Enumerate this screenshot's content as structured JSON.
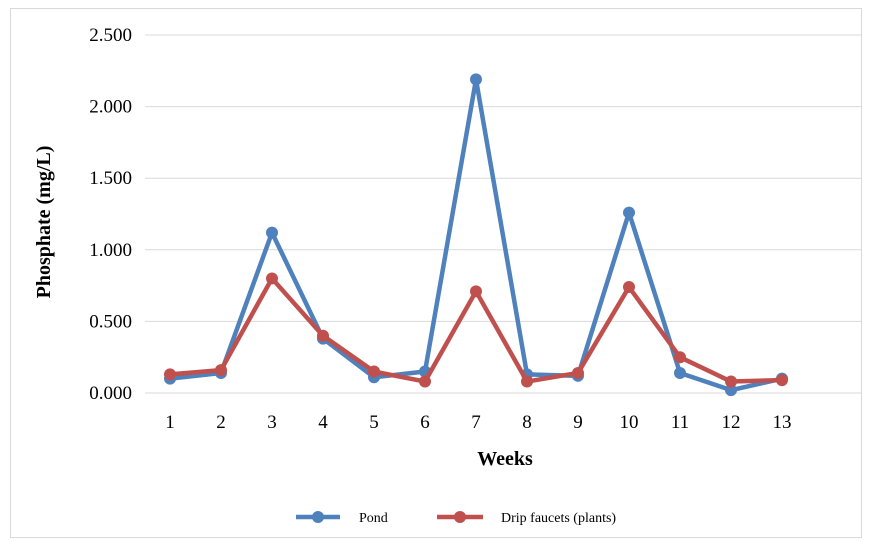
{
  "chart_data": {
    "type": "line",
    "title": "",
    "xlabel": "Weeks",
    "ylabel": "Phosphate (mg/L)",
    "categories": [
      "1",
      "2",
      "3",
      "4",
      "5",
      "6",
      "7",
      "8",
      "9",
      "10",
      "11",
      "12",
      "13"
    ],
    "ylim": [
      0,
      2.5
    ],
    "y_ticks": [
      "0.000",
      "0.500",
      "1.000",
      "1.500",
      "2.000",
      "2.500"
    ],
    "grid": true,
    "legend_position": "bottom",
    "series": [
      {
        "name": "Pond",
        "color": "#4f81bd",
        "values": [
          0.1,
          0.14,
          1.12,
          0.38,
          0.11,
          0.15,
          2.19,
          0.13,
          0.12,
          1.26,
          0.14,
          0.02,
          0.1
        ]
      },
      {
        "name": "Drip faucets (plants)",
        "color": "#c0504d",
        "values": [
          0.13,
          0.16,
          0.8,
          0.4,
          0.15,
          0.08,
          0.71,
          0.08,
          0.14,
          0.74,
          0.25,
          0.08,
          0.09
        ]
      }
    ]
  }
}
